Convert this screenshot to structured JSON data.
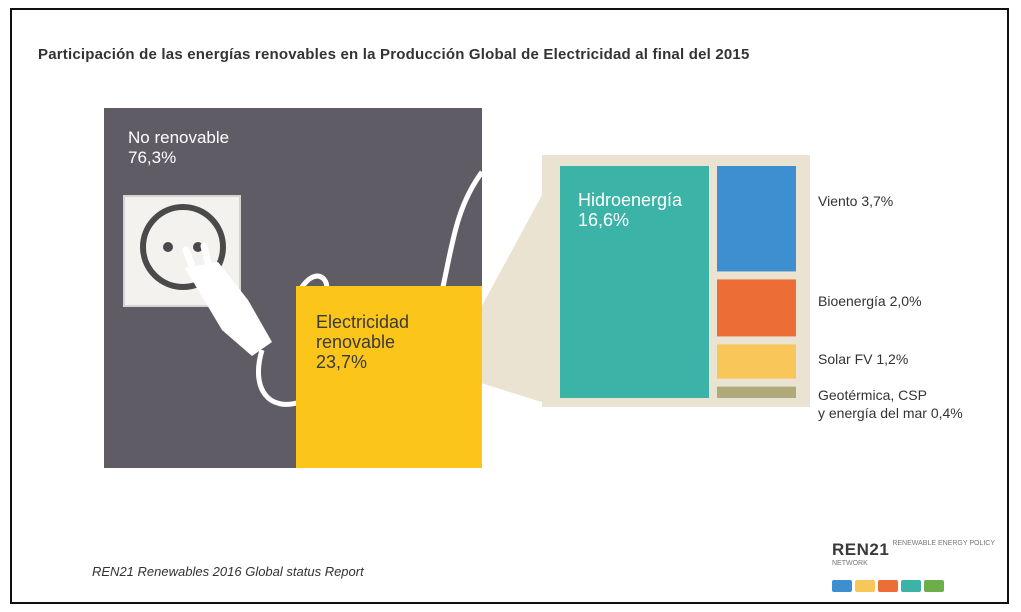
{
  "chart_data": {
    "type": "treemap",
    "title": "Participación de las energías renovables en la Producción Global de Electricidad al final del 2015",
    "total": {
      "non_renewable": {
        "label": "No renovable",
        "value_text": "76,3%",
        "value": 76.3
      },
      "renewable": {
        "label": "Electricidad renovable",
        "value_text": "23,7%",
        "value": 23.7
      }
    },
    "breakdown": [
      {
        "name": "Hidroenergía",
        "value_text": "16,6%",
        "value": 16.6,
        "color": "#3bb3a7"
      },
      {
        "name": "Viento",
        "value_text": "3,7%",
        "value": 3.7,
        "color": "#3d8fd0"
      },
      {
        "name": "Bioenergía",
        "value_text": "2,0%",
        "value": 2.0,
        "color": "#ec6d35"
      },
      {
        "name": "Solar FV",
        "value_text": "1,2%",
        "value": 1.2,
        "color": "#f9c65a"
      },
      {
        "name": "Geotérmica, CSP y energía del mar",
        "value_text": "0,4%",
        "value": 0.4,
        "color": "#b0a97a"
      }
    ]
  },
  "labels": {
    "non_renewable_line1": "No renovable",
    "non_renewable_line2": "76,3%",
    "renewable_line1": "Electricidad",
    "renewable_line2": "renovable",
    "renewable_line3": "23,7%",
    "hydro_line1": "Hidroenergía",
    "hydro_line2": "16,6%",
    "wind": "Viento 3,7%",
    "bio": "Bioenergía 2,0%",
    "solar": "Solar FV 1,2%",
    "geo_line1": "Geotérmica, CSP",
    "geo_line2": "y energía del mar 0,4%"
  },
  "source": "REN21 Renewables 2016 Global status Report",
  "logo": {
    "text": "REN21",
    "subtext": "RENEWABLE ENERGY POLICY NETWORK",
    "colors": [
      "#3d8fd0",
      "#f9c65a",
      "#ec6d35",
      "#3bb3a7",
      "#6cae4a"
    ]
  },
  "colors": {
    "grey": "#5f5c66",
    "yellow": "#fbc51a",
    "beige": "#eae3d2",
    "white_line": "#ffffff"
  }
}
